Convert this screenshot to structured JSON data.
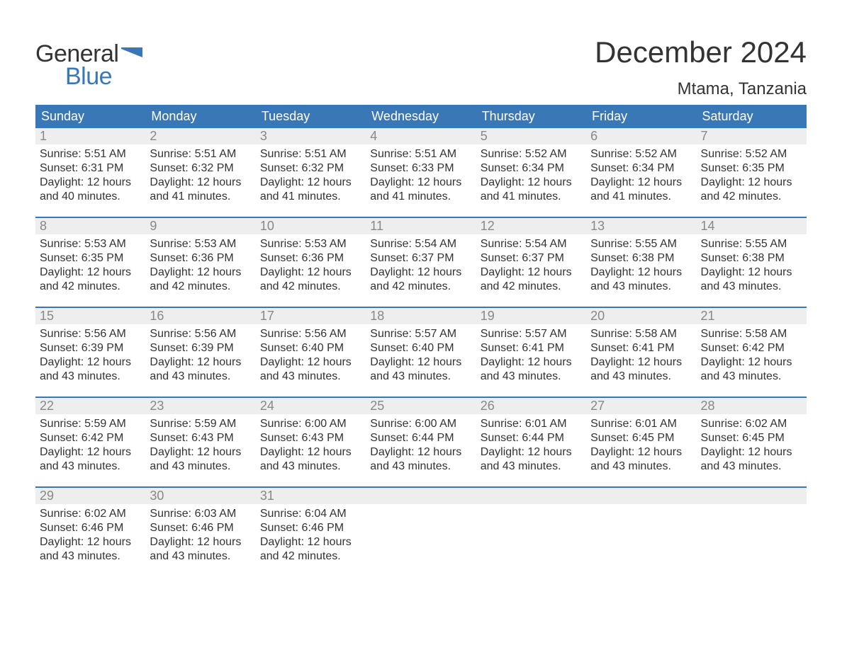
{
  "logo": {
    "word1": "General",
    "word2": "Blue"
  },
  "title": "December 2024",
  "location": "Mtama, Tanzania",
  "colors": {
    "header_bg": "#3a77b7",
    "header_text": "#ffffff",
    "daynum_bg": "#eeeeee",
    "daynum_text": "#888888",
    "body_text": "#333333",
    "accent": "#3a77b7"
  },
  "weekdays": [
    "Sunday",
    "Monday",
    "Tuesday",
    "Wednesday",
    "Thursday",
    "Friday",
    "Saturday"
  ],
  "labels": {
    "sunrise": "Sunrise:",
    "sunset": "Sunset:",
    "daylight": "Daylight:"
  },
  "weeks": [
    [
      {
        "n": "1",
        "sr": "5:51 AM",
        "ss": "6:31 PM",
        "dl": "12 hours and 40 minutes."
      },
      {
        "n": "2",
        "sr": "5:51 AM",
        "ss": "6:32 PM",
        "dl": "12 hours and 41 minutes."
      },
      {
        "n": "3",
        "sr": "5:51 AM",
        "ss": "6:32 PM",
        "dl": "12 hours and 41 minutes."
      },
      {
        "n": "4",
        "sr": "5:51 AM",
        "ss": "6:33 PM",
        "dl": "12 hours and 41 minutes."
      },
      {
        "n": "5",
        "sr": "5:52 AM",
        "ss": "6:34 PM",
        "dl": "12 hours and 41 minutes."
      },
      {
        "n": "6",
        "sr": "5:52 AM",
        "ss": "6:34 PM",
        "dl": "12 hours and 41 minutes."
      },
      {
        "n": "7",
        "sr": "5:52 AM",
        "ss": "6:35 PM",
        "dl": "12 hours and 42 minutes."
      }
    ],
    [
      {
        "n": "8",
        "sr": "5:53 AM",
        "ss": "6:35 PM",
        "dl": "12 hours and 42 minutes."
      },
      {
        "n": "9",
        "sr": "5:53 AM",
        "ss": "6:36 PM",
        "dl": "12 hours and 42 minutes."
      },
      {
        "n": "10",
        "sr": "5:53 AM",
        "ss": "6:36 PM",
        "dl": "12 hours and 42 minutes."
      },
      {
        "n": "11",
        "sr": "5:54 AM",
        "ss": "6:37 PM",
        "dl": "12 hours and 42 minutes."
      },
      {
        "n": "12",
        "sr": "5:54 AM",
        "ss": "6:37 PM",
        "dl": "12 hours and 42 minutes."
      },
      {
        "n": "13",
        "sr": "5:55 AM",
        "ss": "6:38 PM",
        "dl": "12 hours and 43 minutes."
      },
      {
        "n": "14",
        "sr": "5:55 AM",
        "ss": "6:38 PM",
        "dl": "12 hours and 43 minutes."
      }
    ],
    [
      {
        "n": "15",
        "sr": "5:56 AM",
        "ss": "6:39 PM",
        "dl": "12 hours and 43 minutes."
      },
      {
        "n": "16",
        "sr": "5:56 AM",
        "ss": "6:39 PM",
        "dl": "12 hours and 43 minutes."
      },
      {
        "n": "17",
        "sr": "5:56 AM",
        "ss": "6:40 PM",
        "dl": "12 hours and 43 minutes."
      },
      {
        "n": "18",
        "sr": "5:57 AM",
        "ss": "6:40 PM",
        "dl": "12 hours and 43 minutes."
      },
      {
        "n": "19",
        "sr": "5:57 AM",
        "ss": "6:41 PM",
        "dl": "12 hours and 43 minutes."
      },
      {
        "n": "20",
        "sr": "5:58 AM",
        "ss": "6:41 PM",
        "dl": "12 hours and 43 minutes."
      },
      {
        "n": "21",
        "sr": "5:58 AM",
        "ss": "6:42 PM",
        "dl": "12 hours and 43 minutes."
      }
    ],
    [
      {
        "n": "22",
        "sr": "5:59 AM",
        "ss": "6:42 PM",
        "dl": "12 hours and 43 minutes."
      },
      {
        "n": "23",
        "sr": "5:59 AM",
        "ss": "6:43 PM",
        "dl": "12 hours and 43 minutes."
      },
      {
        "n": "24",
        "sr": "6:00 AM",
        "ss": "6:43 PM",
        "dl": "12 hours and 43 minutes."
      },
      {
        "n": "25",
        "sr": "6:00 AM",
        "ss": "6:44 PM",
        "dl": "12 hours and 43 minutes."
      },
      {
        "n": "26",
        "sr": "6:01 AM",
        "ss": "6:44 PM",
        "dl": "12 hours and 43 minutes."
      },
      {
        "n": "27",
        "sr": "6:01 AM",
        "ss": "6:45 PM",
        "dl": "12 hours and 43 minutes."
      },
      {
        "n": "28",
        "sr": "6:02 AM",
        "ss": "6:45 PM",
        "dl": "12 hours and 43 minutes."
      }
    ],
    [
      {
        "n": "29",
        "sr": "6:02 AM",
        "ss": "6:46 PM",
        "dl": "12 hours and 43 minutes."
      },
      {
        "n": "30",
        "sr": "6:03 AM",
        "ss": "6:46 PM",
        "dl": "12 hours and 43 minutes."
      },
      {
        "n": "31",
        "sr": "6:04 AM",
        "ss": "6:46 PM",
        "dl": "12 hours and 42 minutes."
      },
      null,
      null,
      null,
      null
    ]
  ]
}
